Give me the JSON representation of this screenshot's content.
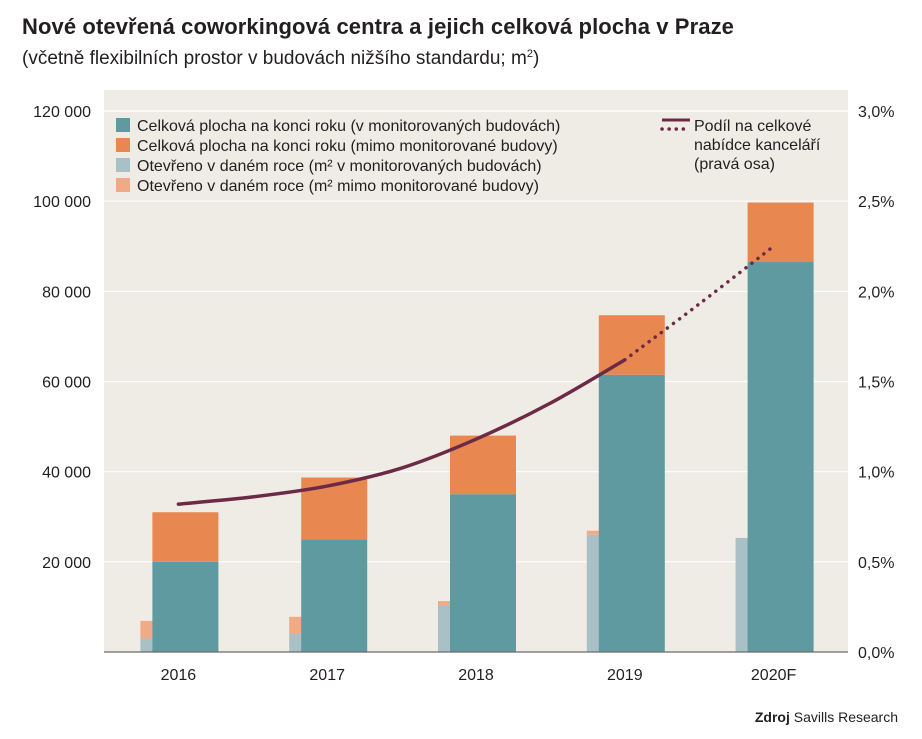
{
  "header": {
    "title": "Nové otevřená coworkingová centra a jejich celková plocha v Praze",
    "subtitle_prefix": "(včetně flexibilních prostor v budovách nižšího standardu; m",
    "subtitle_sup": "2",
    "subtitle_suffix": ")"
  },
  "footer": {
    "source_label": "Zdroj",
    "source_text": "Savills Research"
  },
  "colors": {
    "background": "#efebe5",
    "total_monitored": "#5f9aa0",
    "total_outside": "#e98751",
    "opened_monitored": "#a9c1c6",
    "opened_outside": "#f0ab86",
    "share_line": "#6d2a47",
    "axis_text": "#231f20"
  },
  "chart_data": {
    "type": "bar",
    "categories": [
      "2016",
      "2017",
      "2018",
      "2019",
      "2020F"
    ],
    "left_axis": {
      "ylim": [
        0,
        120000
      ],
      "ticks": [
        0,
        20000,
        40000,
        60000,
        80000,
        100000,
        120000
      ],
      "tick_labels": [
        "",
        "20 000",
        "40 000",
        "60 000",
        "80 000",
        "100 000",
        "120 000"
      ]
    },
    "right_axis": {
      "ylim": [
        0,
        3.0
      ],
      "ticks": [
        0,
        0.5,
        1.0,
        1.5,
        2.0,
        2.5,
        3.0
      ],
      "tick_labels": [
        "0,0%",
        "0,5%",
        "1,0%",
        "1,5%",
        "2,0%",
        "2,5%",
        "3,0%"
      ]
    },
    "grid": true,
    "legend_position": "top",
    "series": [
      {
        "name": "Celková plocha na konci roku (v monitorovaných budovách)",
        "kind": "stacked-bar",
        "stack": "total",
        "color_key": "total_monitored",
        "values": [
          20000,
          25000,
          35000,
          61500,
          86500
        ]
      },
      {
        "name": "Celková plocha na konci roku (mimo monitorované budovy)",
        "kind": "stacked-bar",
        "stack": "total",
        "color_key": "total_outside",
        "values": [
          11000,
          13700,
          13000,
          13200,
          13200
        ]
      },
      {
        "name": "Otevřeno v daném roce (m² v monitorovaných budovách)",
        "kind": "stacked-bar",
        "stack": "opened",
        "color_key": "opened_monitored",
        "values": [
          3000,
          4000,
          10300,
          26000,
          25300
        ]
      },
      {
        "name": "Otevřeno v daném roce (m² mimo monitorované budovy)",
        "kind": "stacked-bar",
        "stack": "opened",
        "color_key": "opened_outside",
        "values": [
          3900,
          3800,
          1000,
          900,
          0
        ]
      },
      {
        "name": "Podíl na celkové nabídce kanceláří (pravá osa)",
        "name_lines": [
          "Podíl na celkové",
          "nabídce kanceláří",
          "(pravá osa)"
        ],
        "kind": "line",
        "axis": "right",
        "color_key": "share_line",
        "x": [
          2016,
          2016.5,
          2017,
          2017.5,
          2018,
          2018.5,
          2019,
          2019.5,
          2020
        ],
        "values": [
          0.82,
          0.86,
          0.92,
          1.02,
          1.18,
          1.38,
          1.62,
          1.93,
          2.25
        ],
        "solid_until": 2019,
        "dotted_from": 2019
      }
    ]
  }
}
